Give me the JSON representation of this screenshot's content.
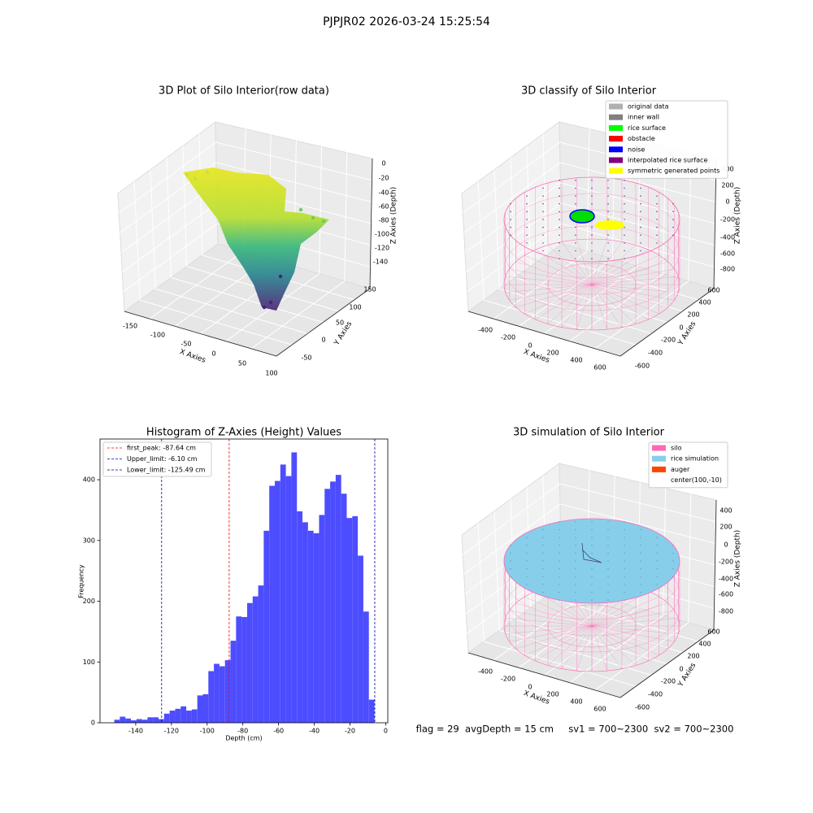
{
  "title": "PJPJR02 2026-03-24 15:25:54",
  "footer": "flag = 29  avgDepth = 15 cm     sv1 = 700~2300  sv2 = 700~2300",
  "chart_data": [
    {
      "type": "scatter3d",
      "title": "3D Plot of Silo Interior(row data)",
      "xlabel": "X Axies",
      "ylabel": "Y Axies",
      "zlabel": "Z Axies (Depth)",
      "xticks": [
        -150,
        -100,
        -50,
        0,
        50,
        100
      ],
      "yticks": [
        -50,
        0,
        50,
        100,
        150
      ],
      "zticks": [
        0,
        -20,
        -40,
        -60,
        -80,
        -100,
        -120,
        -140
      ]
    },
    {
      "type": "scatter3d",
      "title": "3D classify of Silo Interior",
      "xlabel": "X Axies",
      "ylabel": "Y Axies",
      "zlabel": "Z Axies (Depth)",
      "xticks": [
        -400,
        -200,
        0,
        200,
        400,
        600
      ],
      "yticks": [
        -600,
        -400,
        -200,
        0,
        200,
        400,
        600
      ],
      "zticks": [
        400,
        200,
        0,
        -200,
        -400,
        -600,
        -800
      ],
      "legend": [
        {
          "name": "original data",
          "color": "#b0b0b0"
        },
        {
          "name": "inner wall",
          "color": "#808080"
        },
        {
          "name": "rice surface",
          "color": "#00ff00"
        },
        {
          "name": "obstacle",
          "color": "#ff0000"
        },
        {
          "name": "noise",
          "color": "#0000ff"
        },
        {
          "name": "interpolated rice surface",
          "color": "#800080"
        },
        {
          "name": "symmetric generated points",
          "color": "#ffff00"
        }
      ]
    },
    {
      "type": "histogram",
      "title": "Histogram of Z-Axies (Height) Values",
      "xlabel": "Depth (cm)",
      "ylabel": "Frequency",
      "color": "#4d4dff",
      "bins": [
        -152,
        -148.9,
        -145.8,
        -142.7,
        -139.6,
        -136.5,
        -133.4,
        -130.3,
        -127.2,
        -124.1,
        -121,
        -117.9,
        -114.8,
        -111.7,
        -108.6,
        -105.5,
        -102.4,
        -99.3,
        -96.2,
        -93.1,
        -90,
        -86.9,
        -83.8,
        -80.7,
        -77.6,
        -74.5,
        -71.4,
        -68.3,
        -65.2,
        -62.1,
        -59,
        -55.9,
        -52.8,
        -49.7,
        -46.6,
        -43.5,
        -40.4,
        -37.3,
        -34.2,
        -31.1,
        -28,
        -24.9,
        -21.8,
        -18.7,
        -15.6,
        -12.5,
        -9.4,
        -6.3
      ],
      "counts": [
        5,
        10,
        7,
        4,
        6,
        5,
        9,
        9,
        6,
        15,
        20,
        23,
        27,
        20,
        22,
        45,
        47,
        85,
        97,
        93,
        103,
        135,
        175,
        174,
        197,
        208,
        226,
        316,
        390,
        398,
        425,
        406,
        445,
        348,
        330,
        316,
        312,
        342,
        385,
        397,
        408,
        377,
        337,
        340,
        275,
        183,
        38
      ],
      "xlim": [
        -160,
        1.2
      ],
      "ylim": [
        0,
        467
      ],
      "xticks": [
        -140,
        -120,
        -100,
        -80,
        -60,
        -40,
        -20,
        0
      ],
      "yticks": [
        0,
        100,
        200,
        300,
        400
      ],
      "vlines": [
        {
          "name": "first_peak: -87.64 cm",
          "value": -87.64,
          "color": "#ff0000"
        },
        {
          "name": "Upper_limit: -6.10 cm",
          "value": -6.1,
          "color": "#0000aa"
        },
        {
          "name": "Lower_limit: -125.49 cm",
          "value": -125.49,
          "color": "#0000aa"
        }
      ]
    },
    {
      "type": "surface3d",
      "title": "3D simulation of Silo Interior",
      "xlabel": "X Axies",
      "ylabel": "Y Axies",
      "zlabel": "Z Axies (Depth)",
      "xticks": [
        -400,
        -200,
        0,
        200,
        400,
        600
      ],
      "yticks": [
        -600,
        -400,
        -200,
        0,
        200,
        400,
        600
      ],
      "zticks": [
        400,
        200,
        0,
        -200,
        -400,
        -600,
        -800
      ],
      "legend": [
        {
          "name": "silo",
          "color": "#ff69b4"
        },
        {
          "name": "rice simulation",
          "color": "#87ceeb"
        },
        {
          "name": "auger",
          "color": "#ff4500"
        },
        {
          "name": "center(100,-10)"
        }
      ]
    }
  ]
}
